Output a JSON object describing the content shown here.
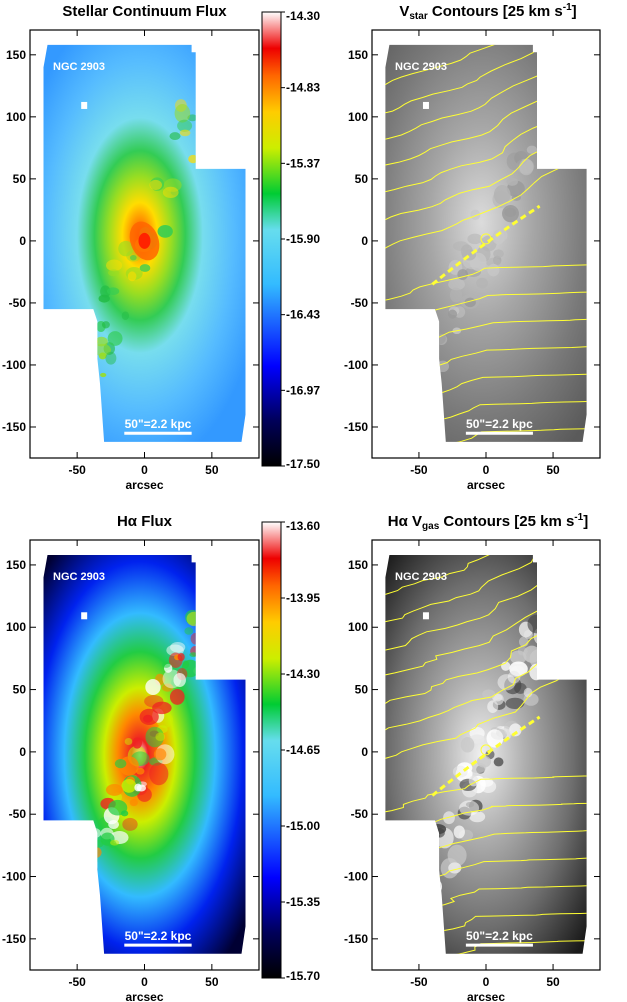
{
  "panels": [
    {
      "key": "p1",
      "title": "Stellar Continuum Flux",
      "galaxy": "NGC 2903",
      "scalebar": "50\"=2.2 kpc",
      "xlabel": "arcsec",
      "xticks": [
        "-50",
        "0",
        "50"
      ],
      "yticks": [
        "150",
        "100",
        "50",
        "0",
        "-50",
        "-100",
        "-150"
      ],
      "style": "color-stellar"
    },
    {
      "key": "p2",
      "title_parts": [
        "V",
        "star",
        " Contours [25 km s",
        "-1",
        "]"
      ],
      "galaxy": "NGC 2903",
      "scalebar": "50\"=2.2 kpc",
      "xlabel": "arcsec",
      "xticks": [
        "-50",
        "0",
        "50"
      ],
      "yticks": [
        "150",
        "100",
        "50",
        "0",
        "-50",
        "-100",
        "-150"
      ],
      "style": "gray-contours"
    },
    {
      "key": "p3",
      "title_parts": [
        "Hα Flux"
      ],
      "galaxy": "NGC 2903",
      "scalebar": "50\"=2.2 kpc",
      "xlabel": "arcsec",
      "xticks": [
        "-50",
        "0",
        "50"
      ],
      "yticks": [
        "150",
        "100",
        "50",
        "0",
        "-50",
        "-100",
        "-150"
      ],
      "style": "color-halpha"
    },
    {
      "key": "p4",
      "title_parts": [
        "Hα V",
        "gas",
        " Contours [25 km s",
        "-1",
        "]"
      ],
      "galaxy": "NGC 2903",
      "scalebar": "50\"=2.2 kpc",
      "xlabel": "arcsec",
      "xticks": [
        "-50",
        "0",
        "50"
      ],
      "yticks": [
        "150",
        "100",
        "50",
        "0",
        "-50",
        "-100",
        "-150"
      ],
      "style": "gray-contours"
    }
  ],
  "colorbars": [
    {
      "ticks": [
        "-14.30",
        "-14.83",
        "-15.37",
        "-15.90",
        "-16.43",
        "-16.97",
        "-17.50"
      ]
    },
    {
      "ticks": [
        "-13.60",
        "-13.95",
        "-14.30",
        "-14.65",
        "-15.00",
        "-15.35",
        "-15.70"
      ]
    }
  ],
  "colors": {
    "contour": "#ffff33",
    "label_text": "#ffffff"
  }
}
